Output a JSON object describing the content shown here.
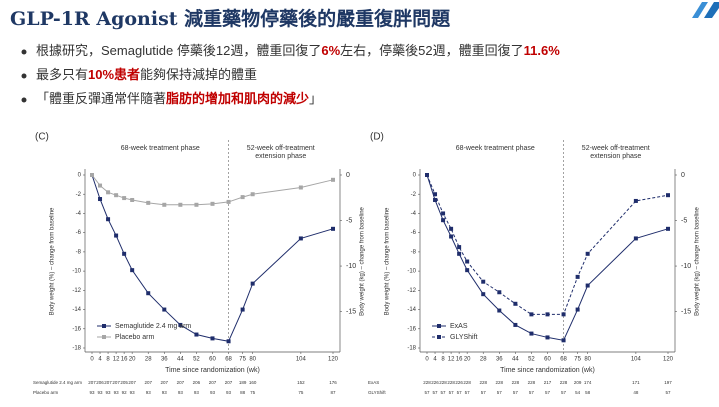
{
  "title": "GLP-1R Agonist 減重藥物停藥後的嚴重復胖問題",
  "bullets": [
    [
      "根據研究，Semaglutide 停藥後12週，體重回復了",
      {
        "text": "6%",
        "color": "#c00000"
      },
      "左右，停藥後52週，體重回復了",
      {
        "text": "11.6%",
        "color": "#c00000"
      }
    ],
    [
      "最多只有",
      {
        "text": "10%患者",
        "color": "#c00000"
      },
      "能夠保持減掉的體重"
    ],
    [
      "「體重反彈通常伴隨著",
      {
        "text": "脂肪的增加和肌肉的減少",
        "color": "#c00000"
      },
      "」"
    ]
  ],
  "chart_data": [
    {
      "type": "line",
      "panel_label": "(C)",
      "xlabel": "Time since randomization (wk)",
      "ylabel": "Body weight (%) – change from baseline",
      "y2label": "Body weight (kg) – change from baseline",
      "annotations": [
        [
          "68-week treatment phase"
        ],
        [
          "52-week off-treatment",
          "extension phase"
        ]
      ],
      "vline": 68,
      "x": [
        0,
        4,
        8,
        12,
        16,
        20,
        28,
        36,
        44,
        52,
        60,
        68,
        75,
        80,
        104,
        120
      ],
      "xlim": [
        0,
        120
      ],
      "xticks": [
        0,
        4,
        8,
        12,
        16,
        20,
        28,
        36,
        44,
        52,
        60,
        68,
        75,
        80,
        104,
        120
      ],
      "ylim": [
        -18,
        0
      ],
      "yticks": [
        0,
        -2,
        -4,
        -6,
        -8,
        -10,
        -12,
        -14,
        -16,
        -18
      ],
      "y2lim": [
        -19,
        0
      ],
      "y2ticks": [
        0,
        -5,
        -10,
        -15
      ],
      "legend": "lower left",
      "series": [
        {
          "name": "Semaglutide 2.4 mg arm",
          "color": "#1f2d6b",
          "line_style": "solid",
          "values": [
            0,
            -2.5,
            -4.6,
            -6.3,
            -8.2,
            -9.9,
            -12.3,
            -14.0,
            -15.6,
            -16.6,
            -17.0,
            -17.3,
            -14.0,
            -11.3,
            -6.6,
            -5.6
          ]
        },
        {
          "name": "Placebo arm",
          "color": "#a6a6a6",
          "line_style": "solid",
          "values": [
            0,
            -1.1,
            -1.8,
            -2.1,
            -2.4,
            -2.6,
            -2.9,
            -3.1,
            -3.1,
            -3.1,
            -3.0,
            -2.8,
            -2.3,
            -2.0,
            -1.3,
            -0.5
          ]
        }
      ],
      "at_risk": [
        {
          "name": "Semaglutide 2.4 mg arm",
          "values": [
            207,
            206,
            207,
            207,
            205,
            207,
            207,
            207,
            207,
            206,
            207,
            207,
            189,
            160,
            152,
            176
          ]
        },
        {
          "name": "Placebo arm",
          "values": [
            93,
            93,
            93,
            93,
            92,
            93,
            93,
            93,
            93,
            93,
            93,
            93,
            88,
            75,
            75,
            87
          ]
        }
      ]
    },
    {
      "type": "line",
      "panel_label": "(D)",
      "xlabel": "Time since randomization (wk)",
      "ylabel": "Body weight (%) – change from baseline",
      "y2label": "Body weight (kg) – change from baseline",
      "annotations": [
        [
          "68-week treatment phase"
        ],
        [
          "52-week off-treatment",
          "extension phase"
        ]
      ],
      "vline": 68,
      "x": [
        0,
        4,
        8,
        12,
        16,
        20,
        28,
        36,
        44,
        52,
        60,
        68,
        75,
        80,
        104,
        120
      ],
      "xlim": [
        0,
        120
      ],
      "xticks": [
        0,
        4,
        8,
        12,
        16,
        20,
        28,
        36,
        44,
        52,
        60,
        68,
        75,
        80,
        104,
        120
      ],
      "ylim": [
        -18,
        0
      ],
      "yticks": [
        0,
        -2,
        -4,
        -6,
        -8,
        -10,
        -12,
        -14,
        -16,
        -18
      ],
      "y2lim": [
        -19,
        0
      ],
      "y2ticks": [
        0,
        -5,
        -10,
        -15
      ],
      "legend": "lower left",
      "series": [
        {
          "name": "ExAS",
          "color": "#1f2d6b",
          "line_style": "solid",
          "values": [
            0,
            -2.6,
            -4.7,
            -6.4,
            -8.2,
            -9.9,
            -12.4,
            -14.1,
            -15.6,
            -16.5,
            -16.9,
            -17.2,
            -14.0,
            -11.5,
            -6.6,
            -5.6
          ]
        },
        {
          "name": "GLYShift",
          "color": "#1f2d6b",
          "line_style": "dashed",
          "values": [
            0,
            -2.0,
            -4.0,
            -5.6,
            -7.5,
            -9.0,
            -11.1,
            -12.2,
            -13.4,
            -14.5,
            -14.5,
            -14.5,
            -10.6,
            -8.2,
            -2.7,
            -2.1
          ]
        }
      ],
      "at_risk": [
        {
          "name": "ExAS",
          "values": [
            228,
            226,
            228,
            228,
            226,
            228,
            228,
            228,
            228,
            228,
            217,
            228,
            209,
            174,
            171,
            197
          ]
        },
        {
          "name": "GLYShift",
          "values": [
            57,
            57,
            57,
            57,
            57,
            57,
            57,
            57,
            57,
            57,
            57,
            57,
            54,
            58,
            48,
            57
          ]
        }
      ]
    }
  ]
}
